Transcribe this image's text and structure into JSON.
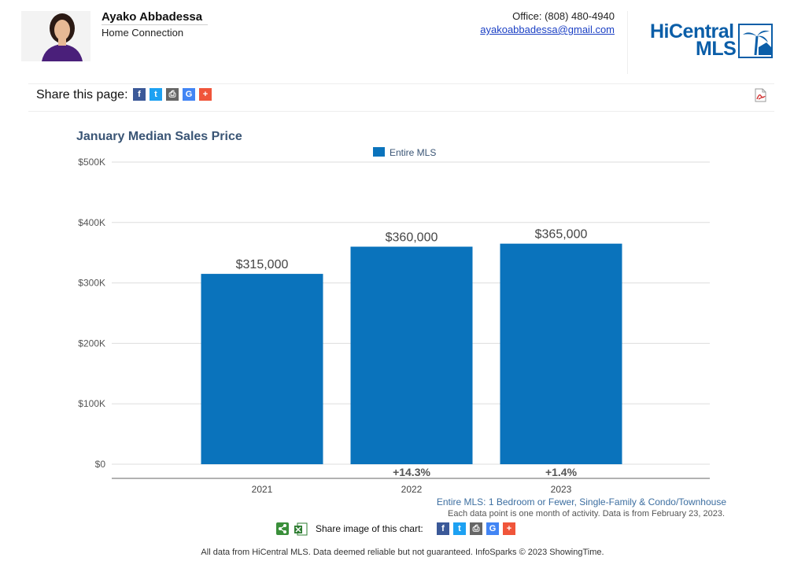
{
  "agent": {
    "name": "Ayako Abbadessa",
    "company": "Home Connection",
    "office": "Office: (808) 480-4940",
    "email": "ayakoabbadessa@gmail.com"
  },
  "logo": {
    "line1": "HiCentral",
    "line2": "MLS"
  },
  "share": {
    "page_label": "Share this page:",
    "image_label": "Share image of this chart:",
    "buttons": [
      {
        "name": "facebook",
        "glyph": "f",
        "color": "#3b5998"
      },
      {
        "name": "twitter",
        "glyph": "t",
        "color": "#1da1f2"
      },
      {
        "name": "print",
        "glyph": "⎙",
        "color": "#666666"
      },
      {
        "name": "google",
        "glyph": "G",
        "color": "#4285f4"
      },
      {
        "name": "more",
        "glyph": "+",
        "color": "#f0553a"
      }
    ]
  },
  "chart_data": {
    "type": "bar",
    "title": "January Median Sales Price",
    "legend": [
      "Entire MLS"
    ],
    "legend_position": "top-center",
    "color": "#0a73bc",
    "categories": [
      "2021",
      "2022",
      "2023"
    ],
    "values": [
      315000,
      360000,
      365000
    ],
    "value_labels": [
      "$315,000",
      "$360,000",
      "$365,000"
    ],
    "change_labels": [
      "",
      "+14.3%",
      "+1.4%"
    ],
    "yticks": [
      0,
      100000,
      200000,
      300000,
      400000,
      500000
    ],
    "ytick_labels": [
      "$0",
      "$100K",
      "$200K",
      "$300K",
      "$400K",
      "$500K"
    ],
    "ylim": [
      0,
      500000
    ],
    "grid": true
  },
  "footer": {
    "series_note": "Entire MLS: 1 Bedroom or Fewer, Single-Family & Condo/Townhouse",
    "data_note": "Each data point is one month of activity. Data is from February 23, 2023.",
    "copyright": "All data from HiCentral MLS. Data deemed reliable but not guaranteed. InfoSparks © 2023 ShowingTime."
  }
}
